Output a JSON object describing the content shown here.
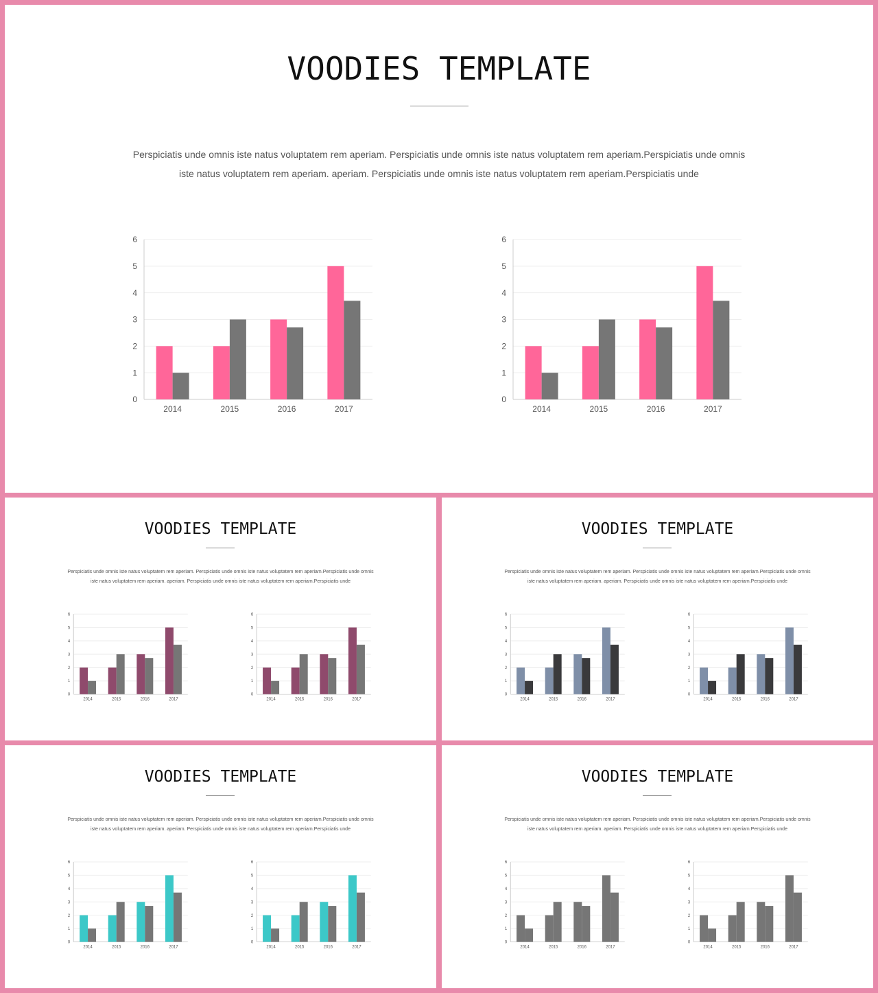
{
  "colors": {
    "frame": "#e88aab",
    "series_b": "#767676",
    "grid": "#eeeeee",
    "axis": "#cccccc"
  },
  "slides": [
    {
      "title": "VOODIES TEMPLATE",
      "body_line1": "Perspiciatis unde omnis  iste natus voluptatem  rem  aperiam.  Perspiciatis unde omnis  iste natus voluptatem  rem  aperiam.Perspiciatis unde omnis",
      "body_line2": "iste natus voluptatem  rem  aperiam.  aperiam.  Perspiciatis unde omnis iste natus voluptatem  rem aperiam.Perspiciatis unde",
      "accent": "#ff6699",
      "series_b_color": "#767676"
    },
    {
      "title": "VOODIES TEMPLATE",
      "body_line1": "Perspiciatis unde omnis  iste natus voluptatem  rem  aperiam.  Perspiciatis unde omnis  iste natus voluptatem  rem  aperiam.Perspiciatis unde omnis",
      "body_line2": "iste natus voluptatem  rem  aperiam.  aperiam.  Perspiciatis unde omnis iste natus voluptatem  rem aperiam.Perspiciatis unde",
      "accent": "#8f4a6c",
      "series_b_color": "#767676"
    },
    {
      "title": "VOODIES TEMPLATE",
      "body_line1": "Perspiciatis unde omnis  iste natus voluptatem  rem  aperiam.  Perspiciatis unde omnis  iste natus voluptatem  rem  aperiam.Perspiciatis unde omnis",
      "body_line2": "iste natus voluptatem  rem  aperiam.  aperiam.  Perspiciatis unde omnis iste natus voluptatem  rem aperiam.Perspiciatis unde",
      "accent": "#7f8fa8",
      "series_b_color": "#3a3a3c"
    },
    {
      "title": "VOODIES TEMPLATE",
      "body_line1": "Perspiciatis unde omnis  iste natus voluptatem  rem  aperiam.  Perspiciatis unde omnis  iste natus voluptatem  rem  aperiam.Perspiciatis unde omnis",
      "body_line2": "iste natus voluptatem  rem  aperiam.  aperiam.  Perspiciatis unde omnis iste natus voluptatem  rem aperiam.Perspiciatis unde",
      "accent": "#3cc8c8",
      "series_b_color": "#767676"
    },
    {
      "title": "VOODIES TEMPLATE",
      "body_line1": "Perspiciatis unde omnis  iste natus voluptatem  rem  aperiam.  Perspiciatis unde omnis  iste natus voluptatem  rem  aperiam.Perspiciatis unde omnis",
      "body_line2": "iste natus voluptatem  rem  aperiam.  aperiam.  Perspiciatis unde omnis iste natus voluptatem  rem aperiam.Perspiciatis unde",
      "accent": "#767676",
      "series_b_color": "#767676"
    }
  ],
  "chart_data": [
    {
      "type": "bar",
      "categories": [
        "2014",
        "2015",
        "2016",
        "2017"
      ],
      "series": [
        {
          "values": [
            2,
            2,
            3,
            5
          ]
        },
        {
          "values": [
            1,
            3,
            2.7,
            3.7
          ]
        }
      ],
      "ylim": [
        0,
        6
      ],
      "yticks": [
        0,
        1,
        2,
        3,
        4,
        5,
        6
      ],
      "grid": true
    },
    {
      "type": "bar",
      "categories": [
        "2014",
        "2015",
        "2016",
        "2017"
      ],
      "series": [
        {
          "values": [
            2,
            2,
            3,
            5
          ]
        },
        {
          "values": [
            1,
            3,
            2.7,
            3.7
          ]
        }
      ],
      "ylim": [
        0,
        6
      ],
      "yticks": [
        0,
        1,
        2,
        3,
        4,
        5,
        6
      ],
      "grid": true
    },
    {
      "type": "bar",
      "categories": [
        "2014",
        "2015",
        "2016",
        "2017"
      ],
      "series": [
        {
          "values": [
            2,
            2,
            3,
            5
          ]
        },
        {
          "values": [
            1,
            3,
            2.7,
            3.7
          ]
        }
      ],
      "ylim": [
        0,
        6
      ],
      "yticks": [
        0,
        1,
        2,
        3,
        4,
        5,
        6
      ],
      "grid": true
    },
    {
      "type": "bar",
      "categories": [
        "2014",
        "2015",
        "2016",
        "2017"
      ],
      "series": [
        {
          "values": [
            2,
            2,
            3,
            5
          ]
        },
        {
          "values": [
            1,
            3,
            2.7,
            3.7
          ]
        }
      ],
      "ylim": [
        0,
        6
      ],
      "yticks": [
        0,
        1,
        2,
        3,
        4,
        5,
        6
      ],
      "grid": true
    },
    {
      "type": "bar",
      "categories": [
        "2014",
        "2015",
        "2016",
        "2017"
      ],
      "series": [
        {
          "values": [
            2,
            2,
            3,
            5
          ]
        },
        {
          "values": [
            1,
            3,
            2.7,
            3.7
          ]
        }
      ],
      "ylim": [
        0,
        6
      ],
      "yticks": [
        0,
        1,
        2,
        3,
        4,
        5,
        6
      ],
      "grid": true
    },
    {
      "type": "bar",
      "categories": [
        "2014",
        "2015",
        "2016",
        "2017"
      ],
      "series": [
        {
          "values": [
            2,
            2,
            3,
            5
          ]
        },
        {
          "values": [
            1,
            3,
            2.7,
            3.7
          ]
        }
      ],
      "ylim": [
        0,
        6
      ],
      "yticks": [
        0,
        1,
        2,
        3,
        4,
        5,
        6
      ],
      "grid": true
    },
    {
      "type": "bar",
      "categories": [
        "2014",
        "2015",
        "2016",
        "2017"
      ],
      "series": [
        {
          "values": [
            2,
            2,
            3,
            5
          ]
        },
        {
          "values": [
            1,
            3,
            2.7,
            3.7
          ]
        }
      ],
      "ylim": [
        0,
        6
      ],
      "yticks": [
        0,
        1,
        2,
        3,
        4,
        5,
        6
      ],
      "grid": true
    },
    {
      "type": "bar",
      "categories": [
        "2014",
        "2015",
        "2016",
        "2017"
      ],
      "series": [
        {
          "values": [
            2,
            2,
            3,
            5
          ]
        },
        {
          "values": [
            1,
            3,
            2.7,
            3.7
          ]
        }
      ],
      "ylim": [
        0,
        6
      ],
      "yticks": [
        0,
        1,
        2,
        3,
        4,
        5,
        6
      ],
      "grid": true
    },
    {
      "type": "bar",
      "categories": [
        "2014",
        "2015",
        "2016",
        "2017"
      ],
      "series": [
        {
          "values": [
            2,
            2,
            3,
            5
          ]
        },
        {
          "values": [
            1,
            3,
            2.7,
            3.7
          ]
        }
      ],
      "ylim": [
        0,
        6
      ],
      "yticks": [
        0,
        1,
        2,
        3,
        4,
        5,
        6
      ],
      "grid": true
    },
    {
      "type": "bar",
      "categories": [
        "2014",
        "2015",
        "2016",
        "2017"
      ],
      "series": [
        {
          "values": [
            2,
            2,
            3,
            5
          ]
        },
        {
          "values": [
            1,
            3,
            2.7,
            3.7
          ]
        }
      ],
      "ylim": [
        0,
        6
      ],
      "yticks": [
        0,
        1,
        2,
        3,
        4,
        5,
        6
      ],
      "grid": true
    }
  ]
}
